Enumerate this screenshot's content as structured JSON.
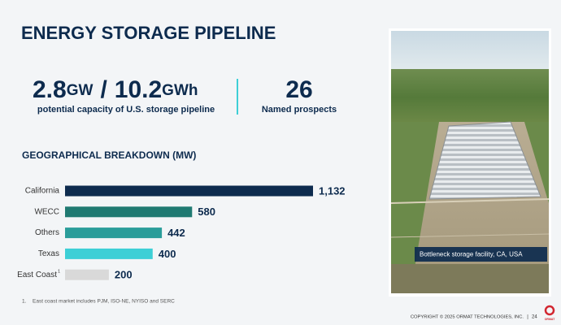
{
  "title": "ENERGY STORAGE PIPELINE",
  "stats": [
    {
      "value": "2.8",
      "unit": "GW"
    },
    {
      "value": "10.2",
      "unit": "GWh"
    }
  ],
  "stats_separator": "/",
  "stats_label": "potential capacity of U.S. storage pipeline",
  "prospects": {
    "value": "26",
    "label": "Named prospects"
  },
  "chart_data": {
    "type": "hbar",
    "title": "GEOGRAPHICAL BREAKDOWN (MW)",
    "categories": [
      "California",
      "WECC",
      "Others",
      "Texas",
      "East Coast"
    ],
    "values": [
      1132,
      580,
      442,
      400,
      200
    ],
    "value_labels": [
      "1,132",
      "580",
      "442",
      "400",
      "200"
    ],
    "colors": [
      "#0d2b4e",
      "#1f7a72",
      "#2a9d9a",
      "#3dcfd6",
      "#d9d9d9"
    ]
  },
  "footnote": {
    "marker": "1",
    "number": "1.",
    "text": "East coast market includes PJM, ISO-NE, NYISO and SERC"
  },
  "photo_caption": "Bottleneck storage facility, CA, USA",
  "footer": {
    "copyright": "COPYRIGHT © 2025 ORMAT TECHNOLOGIES, INC.",
    "separator": "|",
    "page": "24",
    "logo": "ORMAT"
  }
}
